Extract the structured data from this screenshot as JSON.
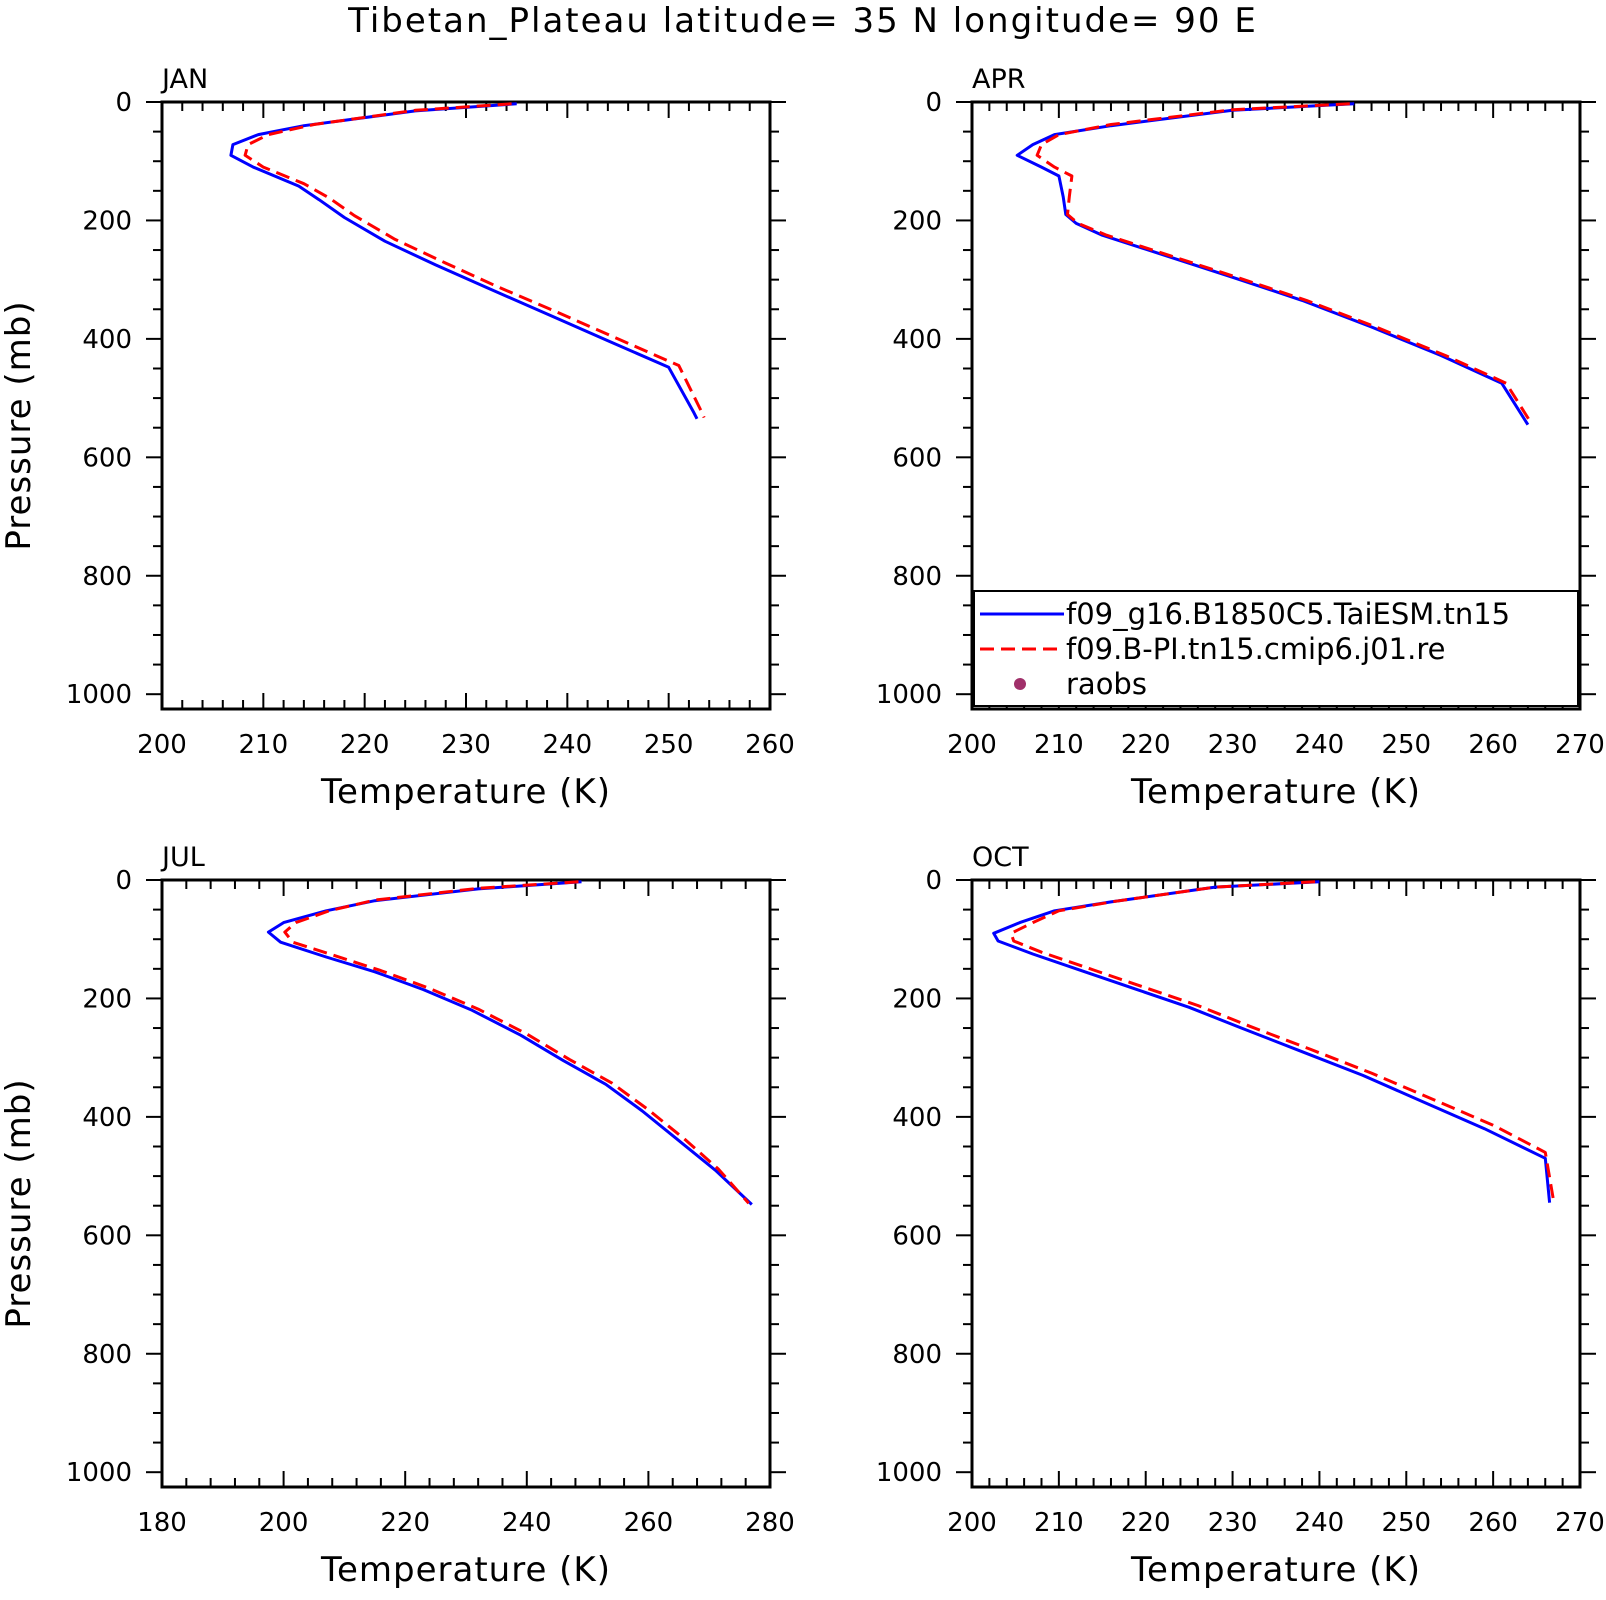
{
  "title": "Tibetan_Plateau  latitude= 35 N longitude= 90 E",
  "colors": {
    "model": "#0000ff",
    "ref": "#ff0000",
    "obs": "#a0306a",
    "axis": "#000000"
  },
  "legend": {
    "entries": [
      {
        "label": "f09_g16.B1850C5.TaiESM.tn15",
        "style": "solid",
        "color": "#0000ff"
      },
      {
        "label": "f09.B-PI.tn15.cmip6.j01.re",
        "style": "dashed",
        "color": "#ff0000"
      },
      {
        "label": "raobs",
        "style": "dot",
        "color": "#a0306a"
      }
    ],
    "placement": "bottom-right of APR panel"
  },
  "chart_data": [
    {
      "type": "line",
      "month": "JAN",
      "xlabel": "Temperature (K)",
      "ylabel": "Pressure (mb)",
      "xlim": [
        200,
        260
      ],
      "ylim": [
        0,
        1025
      ],
      "y_inverted": true,
      "xticks": [
        200,
        210,
        220,
        230,
        240,
        250,
        260
      ],
      "yticks": [
        0,
        200,
        400,
        600,
        800,
        1000
      ],
      "series": [
        {
          "name": "f09_g16.B1850C5.TaiESM.tn15",
          "style": "solid",
          "points": [
            [
              235.0,
              3
            ],
            [
              225,
              15
            ],
            [
              214,
              40
            ],
            [
              209.5,
              55
            ],
            [
              207,
              72
            ],
            [
              206.8,
              90
            ],
            [
              209,
              110
            ],
            [
              213.5,
              142
            ],
            [
              215.5,
              165
            ],
            [
              218,
              195
            ],
            [
              222,
              235
            ],
            [
              227,
              275
            ],
            [
              232,
              313
            ],
            [
              238,
              358
            ],
            [
              244,
              403
            ],
            [
              250,
              448
            ],
            [
              252.5,
              525
            ],
            [
              252.8,
              535
            ]
          ]
        },
        {
          "name": "f09.B-PI.tn15.cmip6.j01.re",
          "style": "dashed",
          "points": [
            [
              234.5,
              3
            ],
            [
              225,
              14
            ],
            [
              215,
              38
            ],
            [
              210.5,
              55
            ],
            [
              208.5,
              72
            ],
            [
              208.2,
              90
            ],
            [
              210,
              110
            ],
            [
              214,
              138
            ],
            [
              216.5,
              162
            ],
            [
              219,
              192
            ],
            [
              223,
              232
            ],
            [
              228,
              272
            ],
            [
              233,
              311
            ],
            [
              239,
              355
            ],
            [
              245,
              400
            ],
            [
              251,
              445
            ],
            [
              253.3,
              525
            ],
            [
              253.5,
              533
            ]
          ]
        }
      ]
    },
    {
      "type": "line",
      "month": "APR",
      "xlabel": "Temperature (K)",
      "ylabel": "",
      "xlim": [
        200,
        270
      ],
      "ylim": [
        0,
        1025
      ],
      "y_inverted": true,
      "xticks": [
        200,
        210,
        220,
        230,
        240,
        250,
        260,
        270
      ],
      "yticks": [
        0,
        200,
        400,
        600,
        800,
        1000
      ],
      "series": [
        {
          "name": "f09_g16.B1850C5.TaiESM.tn15",
          "style": "solid",
          "points": [
            [
              244,
              3
            ],
            [
              230,
              14
            ],
            [
              216,
              40
            ],
            [
              209.5,
              55
            ],
            [
              207,
              72
            ],
            [
              205.2,
              90
            ],
            [
              208,
              110
            ],
            [
              210,
              125
            ],
            [
              210.5,
              160
            ],
            [
              210.8,
              190
            ],
            [
              212,
              205
            ],
            [
              215,
              225
            ],
            [
              222,
              258
            ],
            [
              230,
              296
            ],
            [
              238,
              335
            ],
            [
              246,
              380
            ],
            [
              254,
              428
            ],
            [
              261,
              475
            ],
            [
              264,
              545
            ]
          ]
        },
        {
          "name": "f09.B-PI.tn15.cmip6.j01.re",
          "style": "dashed",
          "points": [
            [
              243.5,
              3
            ],
            [
              230,
              13
            ],
            [
              216,
              38
            ],
            [
              210,
              55
            ],
            [
              208,
              72
            ],
            [
              207.5,
              90
            ],
            [
              209.5,
              110
            ],
            [
              211.5,
              125
            ],
            [
              211.2,
              160
            ],
            [
              211,
              190
            ],
            [
              212.2,
              205
            ],
            [
              215.5,
              225
            ],
            [
              222.5,
              258
            ],
            [
              230.5,
              296
            ],
            [
              238.5,
              335
            ],
            [
              246.5,
              380
            ],
            [
              254.5,
              428
            ],
            [
              261.5,
              475
            ],
            [
              264.5,
              545
            ]
          ]
        }
      ]
    },
    {
      "type": "line",
      "month": "JUL",
      "xlabel": "Temperature (K)",
      "ylabel": "Pressure (mb)",
      "xlim": [
        180,
        280
      ],
      "ylim": [
        0,
        1025
      ],
      "y_inverted": true,
      "xticks": [
        180,
        200,
        220,
        240,
        260,
        280
      ],
      "yticks": [
        0,
        200,
        400,
        600,
        800,
        1000
      ],
      "series": [
        {
          "name": "f09_g16.B1850C5.TaiESM.tn15",
          "style": "solid",
          "points": [
            [
              249,
              3
            ],
            [
              232,
              15
            ],
            [
              215,
              35
            ],
            [
              207,
              52
            ],
            [
              200,
              72
            ],
            [
              197.5,
              88
            ],
            [
              199.5,
              105
            ],
            [
              207,
              130
            ],
            [
              215,
              155
            ],
            [
              223,
              185
            ],
            [
              231,
              220
            ],
            [
              239,
              262
            ],
            [
              246,
              305
            ],
            [
              253,
              345
            ],
            [
              259,
              390
            ],
            [
              265,
              440
            ],
            [
              271,
              490
            ],
            [
              277,
              548
            ]
          ]
        },
        {
          "name": "f09.B-PI.tn15.cmip6.j01.re",
          "style": "dashed",
          "points": [
            [
              248.5,
              3
            ],
            [
              232,
              14
            ],
            [
              215,
              34
            ],
            [
              207.5,
              52
            ],
            [
              202,
              72
            ],
            [
              200.2,
              88
            ],
            [
              201.5,
              105
            ],
            [
              208.5,
              128
            ],
            [
              216,
              153
            ],
            [
              224,
              183
            ],
            [
              232,
              218
            ],
            [
              240,
              260
            ],
            [
              247,
              303
            ],
            [
              254,
              343
            ],
            [
              260,
              388
            ],
            [
              266,
              438
            ],
            [
              271.5,
              488
            ],
            [
              276.5,
              546
            ]
          ]
        }
      ]
    },
    {
      "type": "line",
      "month": "OCT",
      "xlabel": "Temperature (K)",
      "ylabel": "",
      "xlim": [
        200,
        270
      ],
      "ylim": [
        0,
        1025
      ],
      "y_inverted": true,
      "xticks": [
        200,
        210,
        220,
        230,
        240,
        250,
        260,
        270
      ],
      "yticks": [
        0,
        200,
        400,
        600,
        800,
        1000
      ],
      "series": [
        {
          "name": "f09_g16.B1850C5.TaiESM.tn15",
          "style": "solid",
          "points": [
            [
              240,
              3
            ],
            [
              228,
              12
            ],
            [
              216,
              37
            ],
            [
              209.5,
              52
            ],
            [
              205.5,
              72
            ],
            [
              202.5,
              90
            ],
            [
              203,
              103
            ],
            [
              207,
              125
            ],
            [
              213,
              155
            ],
            [
              219,
              185
            ],
            [
              225,
              215
            ],
            [
              231,
              250
            ],
            [
              238,
              290
            ],
            [
              245,
              330
            ],
            [
              252,
              375
            ],
            [
              259,
              420
            ],
            [
              266,
              470
            ],
            [
              266.5,
              545
            ]
          ]
        },
        {
          "name": "f09.B-PI.tn15.cmip6.j01.re",
          "style": "dashed",
          "points": [
            [
              239.5,
              3
            ],
            [
              228,
              12
            ],
            [
              216.5,
              36
            ],
            [
              210,
              52
            ],
            [
              207,
              72
            ],
            [
              204.5,
              90
            ],
            [
              204.8,
              103
            ],
            [
              208,
              122
            ],
            [
              214,
              152
            ],
            [
              220,
              182
            ],
            [
              226,
              212
            ],
            [
              232,
              247
            ],
            [
              239,
              286
            ],
            [
              246,
              326
            ],
            [
              253,
              370
            ],
            [
              260,
              414
            ],
            [
              266,
              460
            ],
            [
              267,
              545
            ]
          ]
        }
      ]
    }
  ]
}
